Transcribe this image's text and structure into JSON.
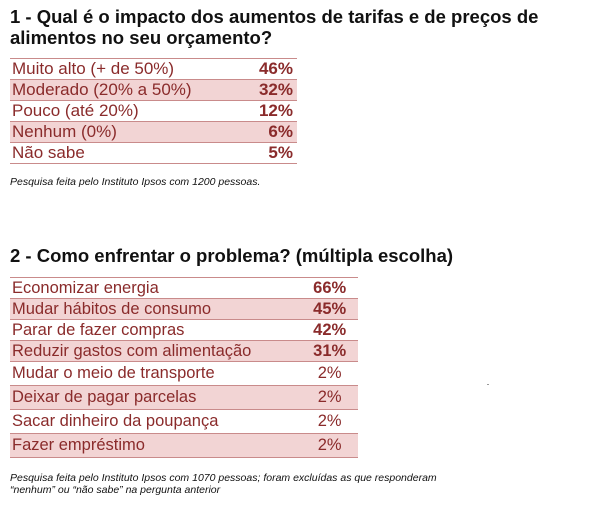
{
  "q1": {
    "title": "1 - Qual é o impacto dos aumentos de tarifas e de preços de alimentos no seu orçamento?",
    "rows": [
      {
        "label": "Muito alto (+ de 50%)",
        "value": "46%"
      },
      {
        "label": "Moderado (20% a 50%)",
        "value": "32%"
      },
      {
        "label": "Pouco (até 20%)",
        "value": "12%"
      },
      {
        "label": "Nenhum (0%)",
        "value": "6%"
      },
      {
        "label": "Não sabe",
        "value": "5%"
      }
    ],
    "note": "Pesquisa feita pelo Instituto Ipsos com 1200 pessoas."
  },
  "q2": {
    "title": "2 - Como enfrentar o problema? (múltipla escolha)",
    "rows": [
      {
        "label": "Economizar energia",
        "value": "66%"
      },
      {
        "label": "Mudar hábitos de consumo",
        "value": "45%"
      },
      {
        "label": "Parar de fazer compras",
        "value": "42%"
      },
      {
        "label": "Reduzir gastos com alimentação",
        "value": "31%"
      },
      {
        "label": "Mudar o meio de transporte",
        "value": "2%"
      },
      {
        "label": "Deixar de pagar parcelas",
        "value": "2%"
      },
      {
        "label": "Sacar dinheiro da poupança",
        "value": "2%"
      },
      {
        "label": "Fazer empréstimo",
        "value": "2%"
      }
    ],
    "note_line1": "Pesquisa feita pelo Instituto Ipsos com 1070 pessoas; foram excluídas as que responderam",
    "note_line2": "“nenhum” ou “não sabe” na pergunta anterior"
  },
  "colors": {
    "text_red": "#8a2b2b",
    "row_shade": "#f2d4d4",
    "rule": "#c98b8b"
  }
}
